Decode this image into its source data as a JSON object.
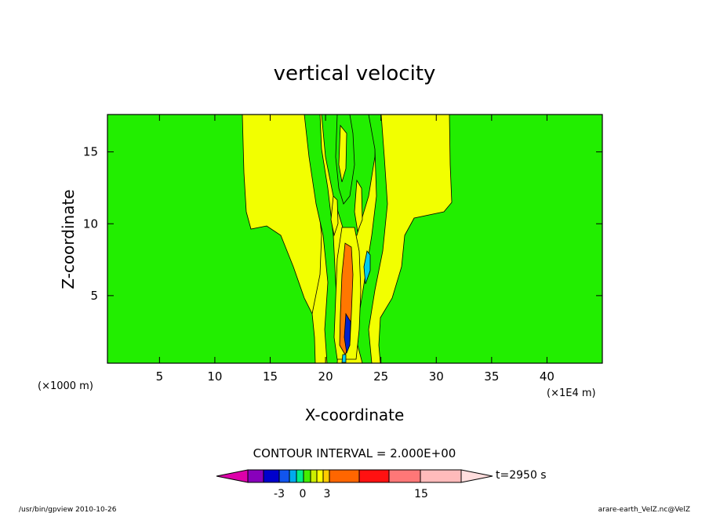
{
  "chart_data": {
    "type": "contour",
    "title": "vertical velocity",
    "xlabel": "X-coordinate",
    "ylabel": "Z-coordinate",
    "x_unit_left": "(×1000 m)",
    "x_unit_right": "(×1E4 m)",
    "x_ticks": [
      "5",
      "10",
      "15",
      "20",
      "25",
      "30",
      "35",
      "40"
    ],
    "x_tick_values": [
      5,
      10,
      15,
      20,
      25,
      30,
      35,
      40
    ],
    "y_ticks": [
      "5",
      "10",
      "15"
    ],
    "y_tick_values": [
      5,
      10,
      15
    ],
    "xlim": [
      0.3,
      45
    ],
    "ylim": [
      0.3,
      17.6
    ],
    "contour_interval_text": "CONTOUR INTERVAL = 2.000E+00",
    "contour_interval": 2.0,
    "time_label": "t=2950 s",
    "colorbar_labels": [
      {
        "text": "-3",
        "value": -3
      },
      {
        "text": "0",
        "value": 0
      },
      {
        "text": "3",
        "value": 3
      },
      {
        "text": "15",
        "value": 15
      }
    ],
    "colorbar_colors": [
      "#dd00aa",
      "#8800bb",
      "#0000cc",
      "#1155ee",
      "#00aaee",
      "#00ee88",
      "#44ee00",
      "#ccee00",
      "#ffff00",
      "#ffcc00",
      "#ff6600",
      "#ff1111",
      "#ff7777",
      "#ffbbbb",
      "#ffdddd"
    ],
    "field_colors": {
      "background": "#22ee00",
      "positive_small": "#f2ff00",
      "positive_large": "#ff7700",
      "negative_small": "#00ccee",
      "negative_large": "#0022cc"
    }
  },
  "footer": {
    "program": "/usr/bin/gpview  2010-10-26",
    "source": "arare-earth_VelZ.nc@VelZ"
  }
}
